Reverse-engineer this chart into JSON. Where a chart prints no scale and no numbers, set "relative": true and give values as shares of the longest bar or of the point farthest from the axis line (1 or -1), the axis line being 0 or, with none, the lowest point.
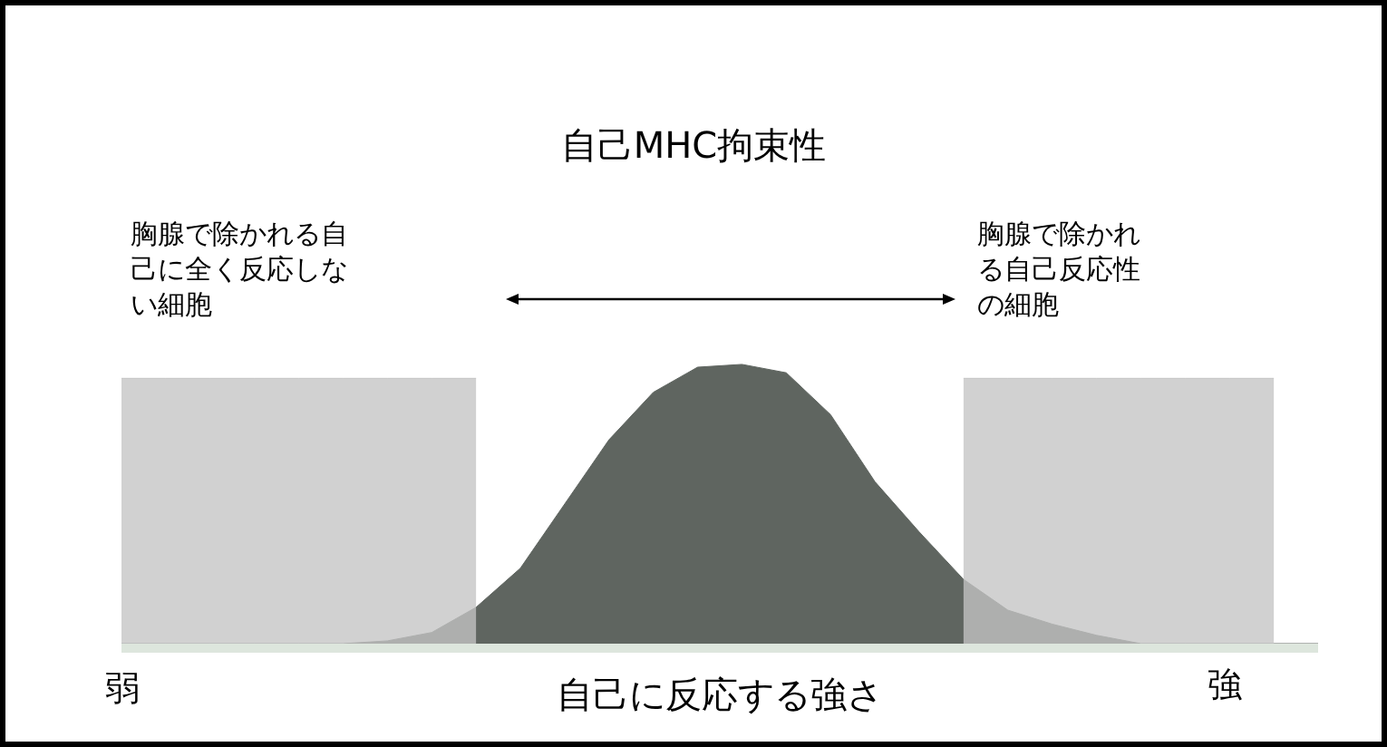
{
  "chart_data": {
    "type": "area",
    "relative": true,
    "title": "自己MHC拘束性",
    "xlabel": "自己に反応する強さ",
    "categories": [
      null,
      null,
      null,
      null,
      null,
      null,
      null,
      null,
      null,
      null,
      null,
      null,
      null,
      null,
      null,
      null,
      null,
      null,
      null,
      null,
      null,
      null,
      null,
      null,
      null,
      null,
      null,
      null
    ],
    "series": [
      {
        "color": "#5f6560",
        "values": [
          0,
          0,
          0,
          0,
          0,
          0,
          0.01,
          0.04,
          0.13,
          0.27,
          0.5,
          0.73,
          0.9,
          0.99,
          1,
          0.97,
          0.82,
          0.58,
          0.4,
          0.23,
          0.12,
          0.07,
          0.03,
          0,
          0,
          0,
          0,
          0
        ]
      },
      {
        "color": "#c4c4c4",
        "values": [
          0.95,
          0.95,
          0.95,
          0.95,
          0.95,
          0.95,
          0.95,
          0.95,
          0.95,
          null,
          null,
          null,
          null,
          null,
          null,
          null,
          null,
          null,
          null,
          null,
          null,
          null,
          null,
          null,
          null,
          null,
          null,
          null
        ]
      },
      {
        "color": "#c4c4c4",
        "values": [
          null,
          null,
          null,
          null,
          null,
          null,
          null,
          null,
          null,
          null,
          null,
          null,
          null,
          null,
          null,
          null,
          null,
          null,
          null,
          0.95,
          0.95,
          0.95,
          0.95,
          0.95,
          0.95,
          0.95,
          0.95,
          null
        ]
      }
    ],
    "annotations": [
      "胸腺で除かれる自己に全く反応しない細胞",
      "胸腺で除かれる自己反応性の細胞",
      "弱",
      "強"
    ]
  }
}
